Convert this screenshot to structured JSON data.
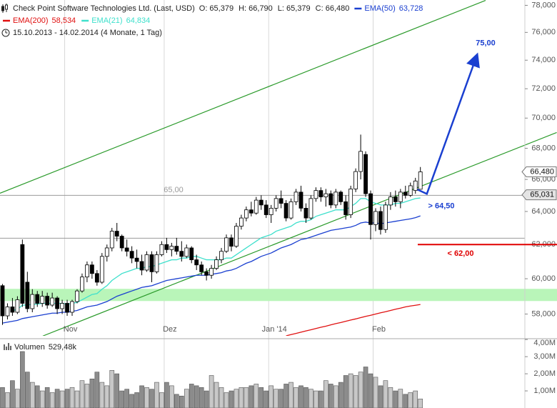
{
  "chart_data": [
    {
      "type": "candlestick",
      "title": "Check Point Software Technologies Ltd. (Last, USD)",
      "ohlc_labels": [
        "O: 65,379",
        "H: 66,790",
        "L: 65,379",
        "C: 66,480"
      ],
      "subtitle": "15.10.2013 - 14.02.2014 (4 Monate, 1 Tag)",
      "open": [
        59.6,
        57.9,
        58.4,
        58.1,
        62.0,
        59.8,
        58.3,
        59.1,
        58.6,
        59.0,
        58.5,
        58.9,
        58.3,
        58.6,
        58.1,
        58.7,
        59.3,
        60.1,
        60.8,
        60.3,
        59.8,
        61.3,
        61.8,
        62.8,
        62.5,
        61.8,
        61.6,
        61.2,
        61.0,
        60.5,
        61.4,
        60.4,
        61.4,
        62.0,
        61.7,
        61.9,
        61.6,
        61.3,
        61.8,
        61.1,
        60.8,
        60.4,
        60.2,
        60.6,
        61.1,
        61.6,
        62.4,
        61.9,
        63.1,
        63.6,
        64.1,
        63.9,
        64.7,
        64.4,
        63.8,
        64.2,
        64.8,
        64.5,
        63.6,
        64.6,
        65.2,
        64.2,
        63.6,
        64.8,
        65.3,
        64.9,
        65.1,
        64.4,
        65.2,
        64.6,
        63.8,
        65.4,
        66.5,
        67.6,
        65.1,
        63.2,
        64.0,
        62.9,
        64.4,
        64.9,
        64.6,
        65.2,
        65.0,
        65.3,
        65.379
      ],
      "high": [
        59.7,
        58.6,
        58.9,
        59.0,
        62.3,
        60.4,
        59.4,
        59.3,
        59.3,
        59.2,
        59.2,
        59.0,
        58.8,
        58.8,
        58.8,
        59.4,
        60.3,
        61.0,
        61.0,
        60.5,
        61.5,
        62.0,
        63.0,
        63.3,
        62.6,
        62.3,
        61.9,
        61.7,
        61.4,
        61.6,
        61.6,
        61.6,
        62.2,
        62.4,
        62.1,
        62.4,
        62.2,
        62.0,
        61.9,
        61.4,
        61.0,
        60.6,
        60.8,
        61.3,
        61.8,
        62.6,
        62.6,
        63.3,
        63.8,
        64.3,
        64.6,
        64.9,
        65.0,
        64.7,
        64.4,
        65.0,
        65.3,
        64.7,
        64.8,
        65.4,
        65.6,
        64.5,
        65.0,
        65.5,
        65.5,
        65.4,
        65.3,
        65.4,
        65.3,
        65.0,
        65.6,
        66.7,
        68.9,
        67.8,
        65.3,
        64.2,
        64.3,
        64.6,
        65.2,
        65.3,
        65.4,
        65.6,
        65.8,
        66.1,
        66.79
      ],
      "low": [
        57.4,
        57.7,
        57.9,
        58.0,
        58.4,
        58.1,
        58.1,
        58.4,
        58.4,
        58.3,
        58.4,
        58.0,
        58.0,
        57.9,
        57.9,
        58.6,
        59.2,
        59.8,
        60.0,
        59.6,
        59.7,
        61.0,
        61.6,
        62.2,
        61.6,
        61.3,
        60.9,
        60.6,
        60.2,
        60.4,
        59.8,
        60.3,
        61.3,
        61.5,
        61.3,
        61.4,
        61.0,
        61.2,
        60.9,
        60.5,
        60.2,
        59.9,
        60.0,
        60.5,
        60.9,
        61.5,
        61.6,
        61.8,
        62.9,
        63.4,
        63.7,
        63.8,
        64.1,
        63.6,
        63.3,
        64.0,
        64.2,
        63.4,
        63.5,
        64.4,
        64.0,
        63.3,
        63.5,
        64.6,
        64.6,
        64.3,
        64.2,
        64.2,
        64.4,
        63.5,
        63.6,
        65.2,
        66.0,
        64.9,
        62.3,
        62.8,
        62.6,
        62.7,
        64.1,
        64.3,
        64.2,
        64.8,
        64.9,
        65.1,
        65.379
      ],
      "close": [
        57.9,
        58.4,
        58.1,
        58.8,
        58.6,
        58.3,
        59.1,
        58.6,
        59.0,
        58.5,
        58.9,
        58.3,
        58.6,
        58.1,
        58.7,
        59.3,
        60.1,
        60.8,
        60.3,
        59.8,
        61.3,
        61.8,
        62.8,
        62.5,
        61.8,
        61.6,
        61.2,
        61.0,
        60.5,
        61.4,
        60.4,
        61.4,
        62.0,
        61.7,
        61.9,
        61.6,
        61.3,
        61.8,
        61.1,
        60.8,
        60.4,
        60.2,
        60.6,
        61.1,
        61.6,
        62.4,
        61.9,
        63.1,
        63.6,
        64.1,
        63.9,
        64.7,
        64.4,
        63.8,
        64.2,
        64.8,
        64.5,
        63.6,
        64.6,
        65.2,
        64.2,
        63.6,
        64.8,
        65.3,
        64.9,
        65.1,
        64.4,
        65.2,
        64.6,
        63.8,
        65.4,
        66.5,
        67.8,
        65.1,
        63.2,
        64.0,
        62.9,
        64.4,
        64.9,
        64.6,
        65.2,
        65.0,
        65.6,
        65.9,
        66.48
      ],
      "up_color": "#ffffff",
      "down_color": "#000000",
      "series": [
        {
          "name": "EMA(50)",
          "color": "#1a3fd0",
          "legend_value": "63,728",
          "values": [
            57.5,
            57.55,
            57.6,
            57.65,
            57.75,
            57.8,
            57.85,
            57.9,
            57.95,
            58.0,
            58.05,
            58.05,
            58.1,
            58.1,
            58.15,
            58.2,
            58.3,
            58.4,
            58.45,
            58.5,
            58.6,
            58.7,
            58.85,
            59.0,
            59.1,
            59.2,
            59.3,
            59.4,
            59.5,
            59.55,
            59.6,
            59.7,
            59.8,
            59.9,
            59.95,
            60.0,
            60.05,
            60.1,
            60.15,
            60.2,
            60.2,
            60.2,
            60.25,
            60.3,
            60.35,
            60.45,
            60.5,
            60.6,
            60.75,
            60.9,
            61.0,
            61.15,
            61.3,
            61.4,
            61.5,
            61.65,
            61.8,
            61.9,
            62.0,
            62.15,
            62.3,
            62.35,
            62.45,
            62.55,
            62.65,
            62.75,
            62.85,
            62.9,
            62.95,
            63.0,
            63.05,
            63.15,
            63.3,
            63.35,
            63.3,
            63.3,
            63.25,
            63.3,
            63.35,
            63.4,
            63.45,
            63.5,
            63.55,
            63.62,
            63.728
          ]
        },
        {
          "name": "EMA(200)",
          "color": "#e01010",
          "legend_value": "58,534",
          "values": [
            null,
            null,
            null,
            null,
            null,
            null,
            null,
            null,
            null,
            null,
            null,
            null,
            null,
            null,
            null,
            null,
            null,
            null,
            null,
            null,
            null,
            null,
            null,
            null,
            null,
            null,
            null,
            null,
            null,
            null,
            null,
            null,
            null,
            null,
            null,
            null,
            null,
            null,
            null,
            null,
            null,
            null,
            null,
            null,
            null,
            null,
            null,
            null,
            null,
            null,
            null,
            null,
            null,
            null,
            null,
            null,
            null,
            56.8,
            56.87,
            56.93,
            57.0,
            57.07,
            57.13,
            57.2,
            57.27,
            57.33,
            57.4,
            57.47,
            57.53,
            57.6,
            57.67,
            57.73,
            57.8,
            57.87,
            57.93,
            58.0,
            58.07,
            58.13,
            58.2,
            58.27,
            58.33,
            58.4,
            58.45,
            58.49,
            58.534
          ]
        },
        {
          "name": "EMA(21)",
          "color": "#3ee0cc",
          "legend_value": "64,834",
          "values": [
            null,
            null,
            58.2,
            58.25,
            58.5,
            58.5,
            58.55,
            58.55,
            58.6,
            58.6,
            58.6,
            58.6,
            58.6,
            58.55,
            58.6,
            58.65,
            58.8,
            58.95,
            59.1,
            59.15,
            59.4,
            59.6,
            59.9,
            60.1,
            60.3,
            60.4,
            60.5,
            60.6,
            60.6,
            60.7,
            60.7,
            60.8,
            60.9,
            61.0,
            61.1,
            61.1,
            61.2,
            61.2,
            61.3,
            61.3,
            61.2,
            61.1,
            61.1,
            61.1,
            61.1,
            61.2,
            61.2,
            61.4,
            61.6,
            61.8,
            62.0,
            62.2,
            62.4,
            62.5,
            62.6,
            62.8,
            62.9,
            63.0,
            63.1,
            63.3,
            63.4,
            63.4,
            63.5,
            63.7,
            63.8,
            63.9,
            64.0,
            64.1,
            64.1,
            64.1,
            64.3,
            64.5,
            64.8,
            64.8,
            64.6,
            64.5,
            64.4,
            64.4,
            64.4,
            64.5,
            64.5,
            64.6,
            64.7,
            64.8,
            64.834
          ]
        }
      ],
      "xlim": [
        -0.5,
        105
      ],
      "xticks": [
        {
          "value": 12.5,
          "label": "Nov"
        },
        {
          "value": 32.5,
          "label": "Dez"
        },
        {
          "value": 53.5,
          "label": "Jan '14"
        },
        {
          "value": 74.5,
          "label": "Feb"
        }
      ],
      "ylim": [
        56.8,
        78.4
      ],
      "log_scale": true,
      "yticks": [
        {
          "value": 58,
          "label": "58,000"
        },
        {
          "value": 60,
          "label": "60,000"
        },
        {
          "value": 62,
          "label": "62,000"
        },
        {
          "value": 64,
          "label": "64,000"
        },
        {
          "value": 66,
          "label": "66,000"
        },
        {
          "value": 68,
          "label": "68,000"
        },
        {
          "value": 70,
          "label": "70,000"
        },
        {
          "value": 72,
          "label": "72,000"
        },
        {
          "value": 74,
          "label": "74,000"
        },
        {
          "value": 76,
          "label": "76,000"
        },
        {
          "value": 78,
          "label": "78,000"
        }
      ],
      "hlines": [
        {
          "value": 65,
          "label": "65,00",
          "color": "#999999"
        },
        {
          "value": 62.38,
          "color": "#999999"
        }
      ],
      "band": {
        "range": [
          58.73,
          59.42
        ],
        "color": "#b9f5b9"
      },
      "trendlines": [
        {
          "color": "#2a9a2a",
          "points": [
            [
              8.1,
              56.79
            ],
            [
              111.4,
              69.04
            ]
          ]
        },
        {
          "color": "#2a9a2a",
          "points": [
            [
              -0.5,
              65.13
            ],
            [
              97.1,
              78.37
            ]
          ]
        }
      ],
      "projection": {
        "color": "#1a3fd0",
        "points": [
          [
            83.4,
            65.36
          ],
          [
            85.3,
            65.09
          ],
          [
            95.2,
            74.19
          ]
        ]
      },
      "annotations": [
        {
          "text": "75,00",
          "value": 75,
          "color": "#1a3fd0"
        },
        {
          "text": "> 64,50",
          "value": 64.5,
          "color": "#1a3fd0"
        }
      ],
      "target_line": {
        "value": 62,
        "label": "< 62,00",
        "color": "#e00000"
      },
      "price_markers": [
        {
          "value": 66.48,
          "label": "66,480",
          "fill": "#ffffff"
        },
        {
          "value": 65.031,
          "label": "65,031",
          "fill": "#e4e4e4"
        }
      ]
    },
    {
      "type": "bar",
      "title": "Volumen",
      "legend_value": "529,48k",
      "values": [
        1.2,
        0.9,
        1.6,
        1.1,
        3.3,
        2.1,
        1.5,
        1.3,
        1.0,
        1.2,
        0.9,
        1.1,
        1.0,
        1.1,
        1.2,
        1.0,
        1.6,
        1.4,
        1.7,
        2.1,
        1.5,
        1.3,
        2.2,
        2.0,
        1.0,
        1.1,
        0.8,
        0.9,
        1.3,
        1.2,
        1.1,
        1.5,
        0.9,
        1.5,
        1.3,
        0.8,
        0.7,
        1.1,
        1.4,
        1.3,
        1.2,
        1.0,
        1.9,
        1.5,
        1.2,
        0.9,
        1.0,
        1.1,
        1.2,
        1.2,
        1.3,
        1.4,
        1.2,
        1.0,
        1.3,
        1.1,
        1.1,
        1.4,
        1.5,
        1.2,
        1.3,
        1.2,
        1.1,
        1.0,
        1.0,
        1.6,
        1.4,
        1.3,
        1.5,
        1.9,
        2.0,
        1.9,
        2.1,
        2.4,
        2.0,
        1.8,
        1.3,
        1.6,
        1.2,
        1.0,
        1.1,
        0.8,
        0.9,
        1.0,
        0.52948
      ],
      "up_color": "#c8c8c8",
      "down_color": "#8c8c8c",
      "ylim": [
        0,
        4.05
      ],
      "yticks": [
        {
          "value": 1,
          "label": "1,00M"
        },
        {
          "value": 2,
          "label": "2,00M"
        },
        {
          "value": 3,
          "label": "3,00M"
        },
        {
          "value": 4,
          "label": "4,00M"
        }
      ]
    }
  ]
}
